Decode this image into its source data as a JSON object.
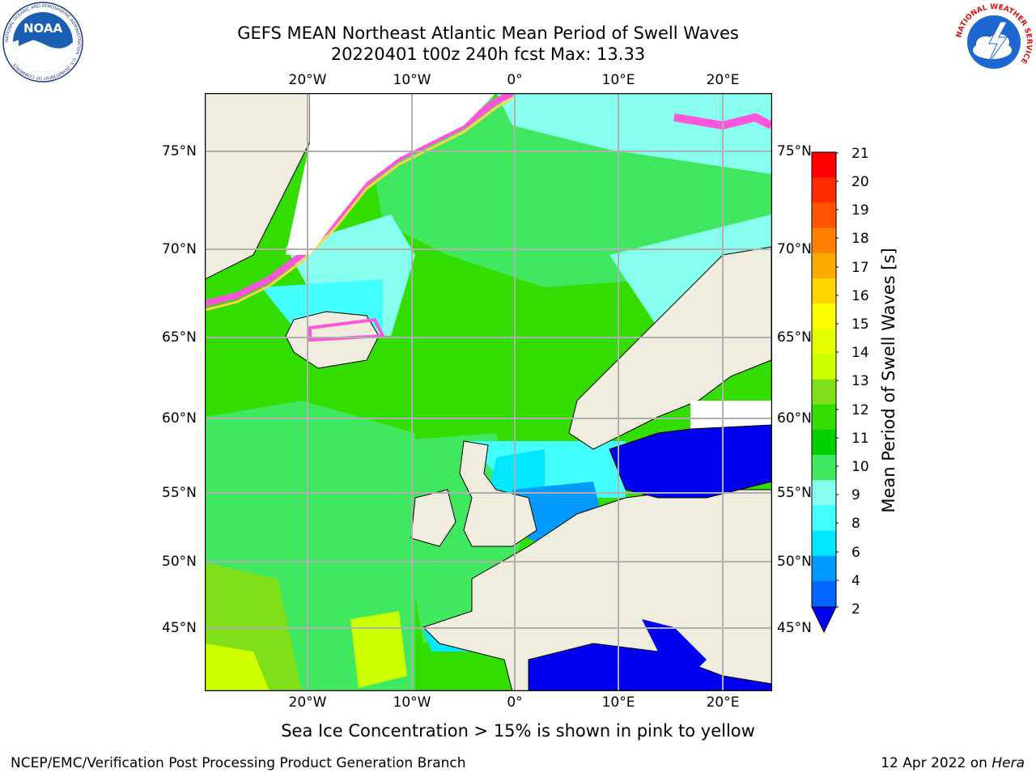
{
  "title": {
    "line1": "GEFS MEAN Northeast Atlantic Mean Period of Swell Waves",
    "line2": "20220401 t00z 240h fcst   Max: 13.33"
  },
  "map": {
    "lon_labels": [
      "20°W",
      "10°W",
      "0°",
      "10°E",
      "20°E"
    ],
    "lat_labels": [
      "75°N",
      "70°N",
      "65°N",
      "60°N",
      "55°N",
      "50°N",
      "45°N"
    ],
    "colors": {
      "land": "#efedde",
      "ice_free": "#ffffff",
      "grid": "#b0b0b0",
      "ice_pink": "#ff55dd",
      "ice_yellow": "#ffd24a"
    }
  },
  "colorbar": {
    "title": "Mean Period of Swell Waves [s]",
    "ticks": [
      "21",
      "20",
      "19",
      "18",
      "17",
      "16",
      "15",
      "14",
      "13",
      "12",
      "11",
      "10",
      "9",
      "8",
      "6",
      "4",
      "2"
    ],
    "colors": [
      "#ff0000",
      "#ff2a00",
      "#ff5500",
      "#ff8000",
      "#ffaa00",
      "#ffd500",
      "#ffff00",
      "#e6ff00",
      "#ccff00",
      "#7fe01a",
      "#33dd00",
      "#00d000",
      "#40e860",
      "#88ffee",
      "#44ffff",
      "#00e8ff",
      "#0099ff",
      "#0066ff",
      "#0000ee"
    ]
  },
  "caption": "Sea Ice Concentration > 15% is shown in pink to yellow",
  "footer": {
    "left": "NCEP/EMC/Verification Post Processing Product Generation Branch",
    "date": "12 Apr 2022 on",
    "machine": "Hera"
  },
  "logos": {
    "noaa_text": "NOAA",
    "noaa_ring": "NATIONAL OCEANIC AND ATMOSPHERIC ADMINISTRATION · U.S. DEPARTMENT OF COMMERCE",
    "nws_ring": "NATIONAL WEATHER SERVICE"
  }
}
